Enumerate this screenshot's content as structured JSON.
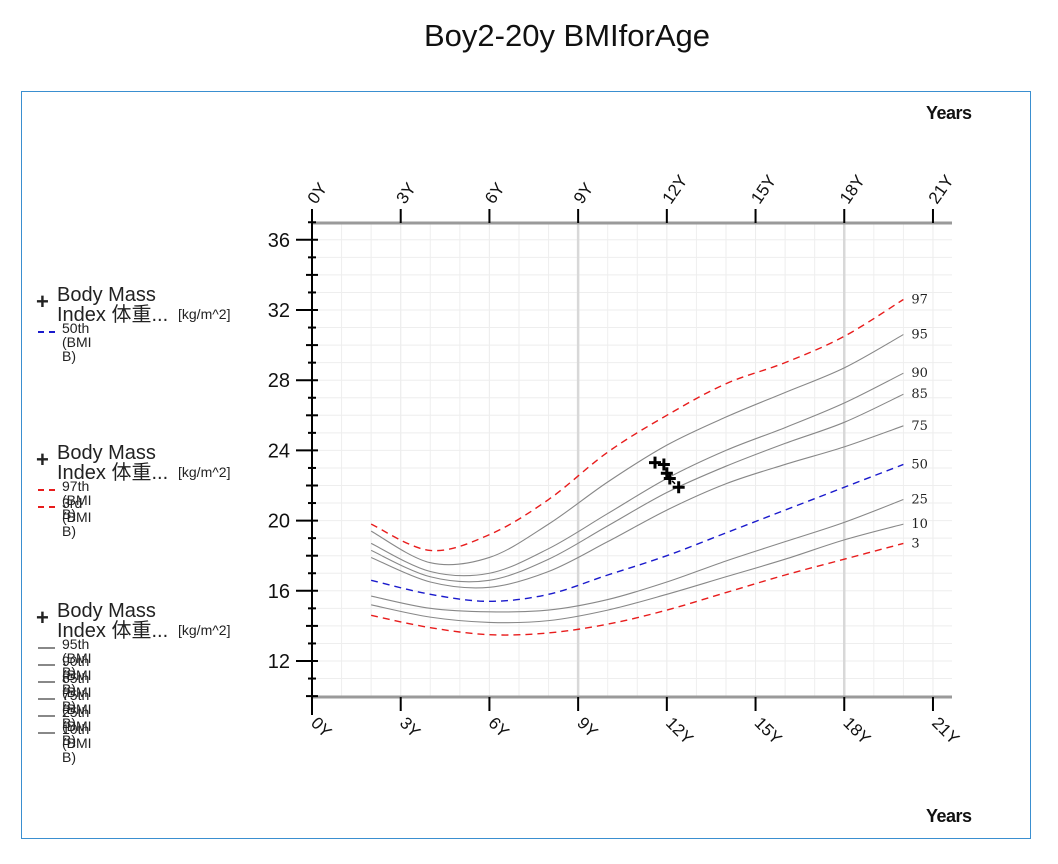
{
  "title": "Boy2-20y BMIforAge",
  "x_axis_unit_label": "Years",
  "legend": [
    {
      "name": "Body Mass Index 体重...",
      "unit": "[kg/m^2]",
      "items": [
        {
          "label": "50th (BMI B)",
          "color": "#1a1acc",
          "style": "dashed"
        }
      ]
    },
    {
      "name": "Body Mass Index 体重...",
      "unit": "[kg/m^2]",
      "items": [
        {
          "label": "97th (BMI B)",
          "color": "#e81c1c",
          "style": "dashed"
        },
        {
          "label": "3rd (BMI B)",
          "color": "#e81c1c",
          "style": "dashed"
        }
      ]
    },
    {
      "name": "Body Mass Index 体重...",
      "unit": "[kg/m^2]",
      "items": [
        {
          "label": "95th (BMI B)",
          "color": "#888888",
          "style": "solid"
        },
        {
          "label": "90th (BMI B)",
          "color": "#888888",
          "style": "solid"
        },
        {
          "label": "85th (BMI B)",
          "color": "#888888",
          "style": "solid"
        },
        {
          "label": "75th (BMI B)",
          "color": "#888888",
          "style": "solid"
        },
        {
          "label": "25th (BMI B)",
          "color": "#888888",
          "style": "solid"
        },
        {
          "label": "10th (BMI B)",
          "color": "#888888",
          "style": "solid"
        }
      ]
    }
  ],
  "chart_data": {
    "type": "line",
    "title": "Boy2-20y BMIforAge",
    "xlabel": "Years",
    "ylabel": "",
    "xlim": [
      0,
      21.5
    ],
    "ylim": [
      9.5,
      37
    ],
    "x_tick_labels": [
      "0Y",
      "3Y",
      "6Y",
      "9Y",
      "12Y",
      "15Y",
      "18Y",
      "21Y"
    ],
    "x_ticks": [
      0,
      3,
      6,
      9,
      12,
      15,
      18,
      21
    ],
    "y_tick_labels": [
      "12",
      "16",
      "20",
      "24",
      "28",
      "32",
      "36"
    ],
    "y_ticks": [
      12,
      16,
      20,
      24,
      28,
      32,
      36
    ],
    "x": [
      2,
      4,
      6,
      8,
      10,
      12,
      14,
      16,
      18,
      20
    ],
    "series": [
      {
        "name": "97",
        "color": "#e81c1c",
        "dash": true,
        "values": [
          19.8,
          18.3,
          19.2,
          21.2,
          23.9,
          26.0,
          27.8,
          29.0,
          30.5,
          32.6
        ]
      },
      {
        "name": "95",
        "color": "#888888",
        "dash": false,
        "values": [
          19.4,
          17.6,
          17.9,
          19.8,
          22.2,
          24.3,
          25.9,
          27.3,
          28.7,
          30.6
        ]
      },
      {
        "name": "90",
        "color": "#888888",
        "dash": false,
        "values": [
          18.7,
          17.1,
          17.0,
          18.4,
          20.4,
          22.4,
          24.0,
          25.3,
          26.7,
          28.4
        ]
      },
      {
        "name": "85",
        "color": "#888888",
        "dash": false,
        "values": [
          18.3,
          16.8,
          16.6,
          17.8,
          19.7,
          21.6,
          23.1,
          24.4,
          25.6,
          27.2
        ]
      },
      {
        "name": "75",
        "color": "#888888",
        "dash": false,
        "values": [
          17.9,
          16.5,
          16.2,
          17.1,
          18.8,
          20.6,
          22.1,
          23.2,
          24.2,
          25.4
        ]
      },
      {
        "name": "50",
        "color": "#1a1acc",
        "dash": true,
        "values": [
          16.6,
          15.8,
          15.4,
          15.8,
          16.9,
          18.0,
          19.3,
          20.6,
          21.9,
          23.2
        ]
      },
      {
        "name": "25",
        "color": "#888888",
        "dash": false,
        "values": [
          15.7,
          15.0,
          14.8,
          14.9,
          15.5,
          16.5,
          17.7,
          18.8,
          19.9,
          21.2
        ]
      },
      {
        "name": "10",
        "color": "#888888",
        "dash": false,
        "values": [
          15.2,
          14.5,
          14.2,
          14.3,
          14.9,
          15.8,
          16.8,
          17.8,
          18.9,
          19.8
        ]
      },
      {
        "name": "3",
        "color": "#e81c1c",
        "dash": true,
        "values": [
          14.6,
          13.9,
          13.5,
          13.6,
          14.1,
          14.9,
          15.9,
          16.9,
          17.8,
          18.7
        ]
      }
    ],
    "measurements": {
      "color": "#000000",
      "points": [
        {
          "x": 11.6,
          "y": 23.3
        },
        {
          "x": 11.9,
          "y": 23.2
        },
        {
          "x": 12.0,
          "y": 22.7
        },
        {
          "x": 12.1,
          "y": 22.4
        },
        {
          "x": 12.4,
          "y": 21.9
        }
      ]
    },
    "highlight_gridlines_x": [
      9,
      18
    ]
  }
}
